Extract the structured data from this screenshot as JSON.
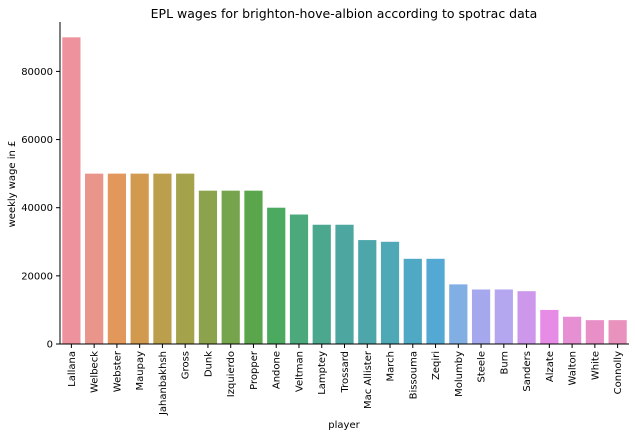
{
  "chart_data": {
    "type": "bar",
    "title": "EPL wages for brighton-hove-albion according to spotrac data",
    "xlabel": "player",
    "ylabel": "weekly wage in £",
    "ylim": [
      0,
      94500
    ],
    "yticks": [
      0,
      20000,
      40000,
      60000,
      80000
    ],
    "ytick_labels": [
      "0",
      "20000",
      "40000",
      "60000",
      "80000"
    ],
    "grid": false,
    "categories": [
      "Lallana",
      "Welbeck",
      "Webster",
      "Maupay",
      "Jahanbakhsh",
      "Gross",
      "Dunk",
      "Izquierdo",
      "Propper",
      "Andone",
      "Veltman",
      "Lamptey",
      "Trossard",
      "Mac Allister",
      "March",
      "Bissouma",
      "Zeqiri",
      "Molumby",
      "Steele",
      "Burn",
      "Sanders",
      "Alzate",
      "Walton",
      "White",
      "Connolly"
    ],
    "values": [
      90000,
      50000,
      50000,
      50000,
      50000,
      50000,
      45000,
      45000,
      45000,
      40000,
      38000,
      35000,
      35000,
      30500,
      30000,
      25000,
      25000,
      17500,
      16000,
      16000,
      15500,
      10000,
      8000,
      7000,
      7000
    ],
    "colors": [
      "#ee939d",
      "#ea958b",
      "#e2985a",
      "#d19a4f",
      "#bb9f4c",
      "#a5a24c",
      "#8da24c",
      "#76a44c",
      "#5ba54c",
      "#4ba960",
      "#4ca97c",
      "#4ca78f",
      "#4da69f",
      "#4da7aa",
      "#4ea8b6",
      "#50a9c4",
      "#54a9d4",
      "#82afe3",
      "#a5a8ec",
      "#b4a6ef",
      "#cd98ec",
      "#e68be6",
      "#e78fd3",
      "#e88fc7",
      "#e892bd"
    ]
  }
}
